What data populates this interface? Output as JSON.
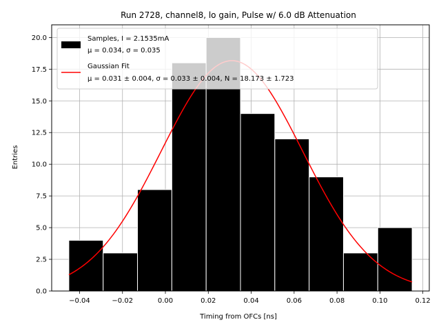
{
  "chart_data": {
    "type": "bar",
    "title": "Run 2728, channel8, lo gain, Pulse w/ 6.0 dB Attenuation",
    "xlabel": "Timing from OFCs [ns]",
    "ylabel": "Entries",
    "xlim": [
      -0.053,
      0.123
    ],
    "ylim": [
      0,
      21
    ],
    "xticks": [
      -0.04,
      -0.02,
      0.0,
      0.02,
      0.04,
      0.06,
      0.08,
      0.1,
      0.12
    ],
    "xtick_labels": [
      "−0.04",
      "−0.02",
      "0.00",
      "0.02",
      "0.04",
      "0.06",
      "0.08",
      "0.10",
      "0.12"
    ],
    "yticks": [
      0,
      2.5,
      5,
      7.5,
      10,
      12.5,
      15,
      17.5,
      20
    ],
    "ytick_labels": [
      "0.0",
      "2.5",
      "5.0",
      "7.5",
      "10.0",
      "12.5",
      "15.0",
      "17.5",
      "20.0"
    ],
    "grid": true,
    "legend_position": "top",
    "histogram": {
      "name": "Samples, I = 2.1535mA",
      "bin_edges": [
        -0.045,
        -0.029,
        -0.013,
        0.003,
        0.019,
        0.035,
        0.051,
        0.067,
        0.083,
        0.099,
        0.115
      ],
      "counts": [
        4,
        3,
        8,
        18,
        20,
        14,
        12,
        9,
        3,
        5
      ],
      "color": "#000000",
      "edge_color": "#ffffff",
      "stats": "μ = 0.034, σ = 0.035"
    },
    "fit": {
      "name": "Gaussian Fit",
      "type": "line",
      "color": "#ff0000",
      "mu": 0.031,
      "sigma": 0.033,
      "N": 18.173,
      "x_range": [
        -0.045,
        0.115
      ],
      "stats": "μ = 0.031 ± 0.004, σ = 0.033 ± 0.004, N = 18.173 ± 1.723"
    },
    "legend": [
      {
        "label_line1": "Samples, I = 2.1535mA",
        "label_line2": "μ = 0.034, σ = 0.035",
        "swatch": "patch",
        "color": "#000000"
      },
      {
        "label_line1": "Gaussian Fit",
        "label_line2": "μ = 0.031 ± 0.004, σ = 0.033 ± 0.004, N = 18.173 ± 1.723",
        "swatch": "line",
        "color": "#ff0000"
      }
    ]
  }
}
